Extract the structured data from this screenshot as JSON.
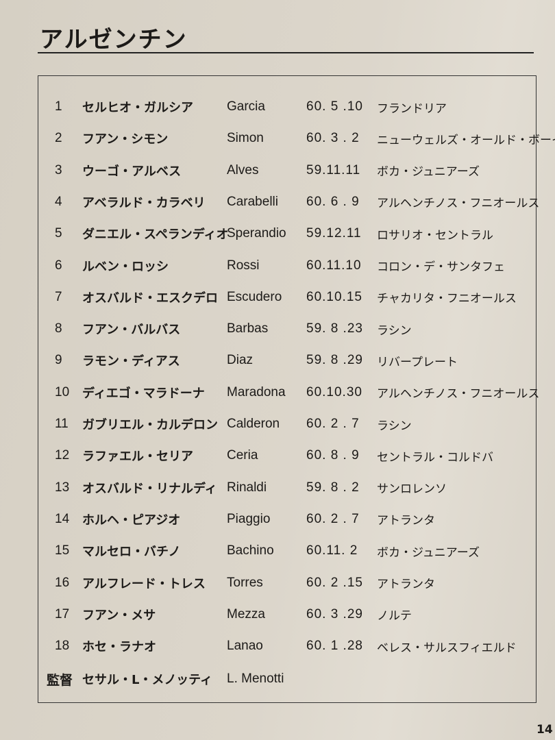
{
  "title": "アルゼンチン",
  "players": [
    {
      "no": "1",
      "jp": "セルヒオ・ガルシア",
      "roman": "Garcia",
      "date": "60. 5 .10",
      "club": "フランドリア"
    },
    {
      "no": "2",
      "jp": "フアン・シモン",
      "roman": "Simon",
      "date": "60. 3 . 2",
      "club": "ニューウェルズ・オールド・ボーイズ"
    },
    {
      "no": "3",
      "jp": "ウーゴ・アルベス",
      "roman": "Alves",
      "date": "59.11.11",
      "club": "ボカ・ジュニアーズ"
    },
    {
      "no": "4",
      "jp": "アベラルド・カラベリ",
      "roman": "Carabelli",
      "date": "60. 6 . 9",
      "club": "アルヘンチノス・フニオールス"
    },
    {
      "no": "5",
      "jp": "ダニエル・スペランディオ",
      "roman": "Sperandio",
      "date": "59.12.11",
      "club": "ロサリオ・セントラル"
    },
    {
      "no": "6",
      "jp": "ルベン・ロッシ",
      "roman": "Rossi",
      "date": "60.11.10",
      "club": "コロン・デ・サンタフェ"
    },
    {
      "no": "7",
      "jp": "オスバルド・エスクデロ",
      "roman": "Escudero",
      "date": "60.10.15",
      "club": "チャカリタ・フニオールス"
    },
    {
      "no": "8",
      "jp": "フアン・バルバス",
      "roman": "Barbas",
      "date": "59. 8 .23",
      "club": "ラシン"
    },
    {
      "no": "9",
      "jp": "ラモン・ディアス",
      "roman": "Diaz",
      "date": "59. 8 .29",
      "club": "リバープレート"
    },
    {
      "no": "10",
      "jp": "ディエゴ・マラドーナ",
      "roman": "Maradona",
      "date": "60.10.30",
      "club": "アルヘンチノス・フニオールス"
    },
    {
      "no": "11",
      "jp": "ガブリエル・カルデロン",
      "roman": "Calderon",
      "date": "60. 2 . 7",
      "club": "ラシン"
    },
    {
      "no": "12",
      "jp": "ラファエル・セリア",
      "roman": "Ceria",
      "date": "60. 8 . 9",
      "club": "セントラル・コルドバ"
    },
    {
      "no": "13",
      "jp": "オスバルド・リナルディ",
      "roman": "Rinaldi",
      "date": "59. 8 . 2",
      "club": "サンロレンソ"
    },
    {
      "no": "14",
      "jp": "ホルヘ・ピアジオ",
      "roman": "Piaggio",
      "date": "60. 2 . 7",
      "club": "アトランタ"
    },
    {
      "no": "15",
      "jp": "マルセロ・バチノ",
      "roman": "Bachino",
      "date": "60.11. 2",
      "club": "ボカ・ジュニアーズ"
    },
    {
      "no": "16",
      "jp": "アルフレード・トレス",
      "roman": "Torres",
      "date": "60. 2 .15",
      "club": "アトランタ"
    },
    {
      "no": "17",
      "jp": "フアン・メサ",
      "roman": "Mezza",
      "date": "60. 3 .29",
      "club": "ノルテ"
    },
    {
      "no": "18",
      "jp": "ホセ・ラナオ",
      "roman": "Lanao",
      "date": "60. 1 .28",
      "club": "ベレス・サルスフィエルド"
    }
  ],
  "coach": {
    "label": "監督",
    "jp": "セサル・L・メノッティ",
    "roman": "L. Menotti"
  },
  "page_number": "14"
}
